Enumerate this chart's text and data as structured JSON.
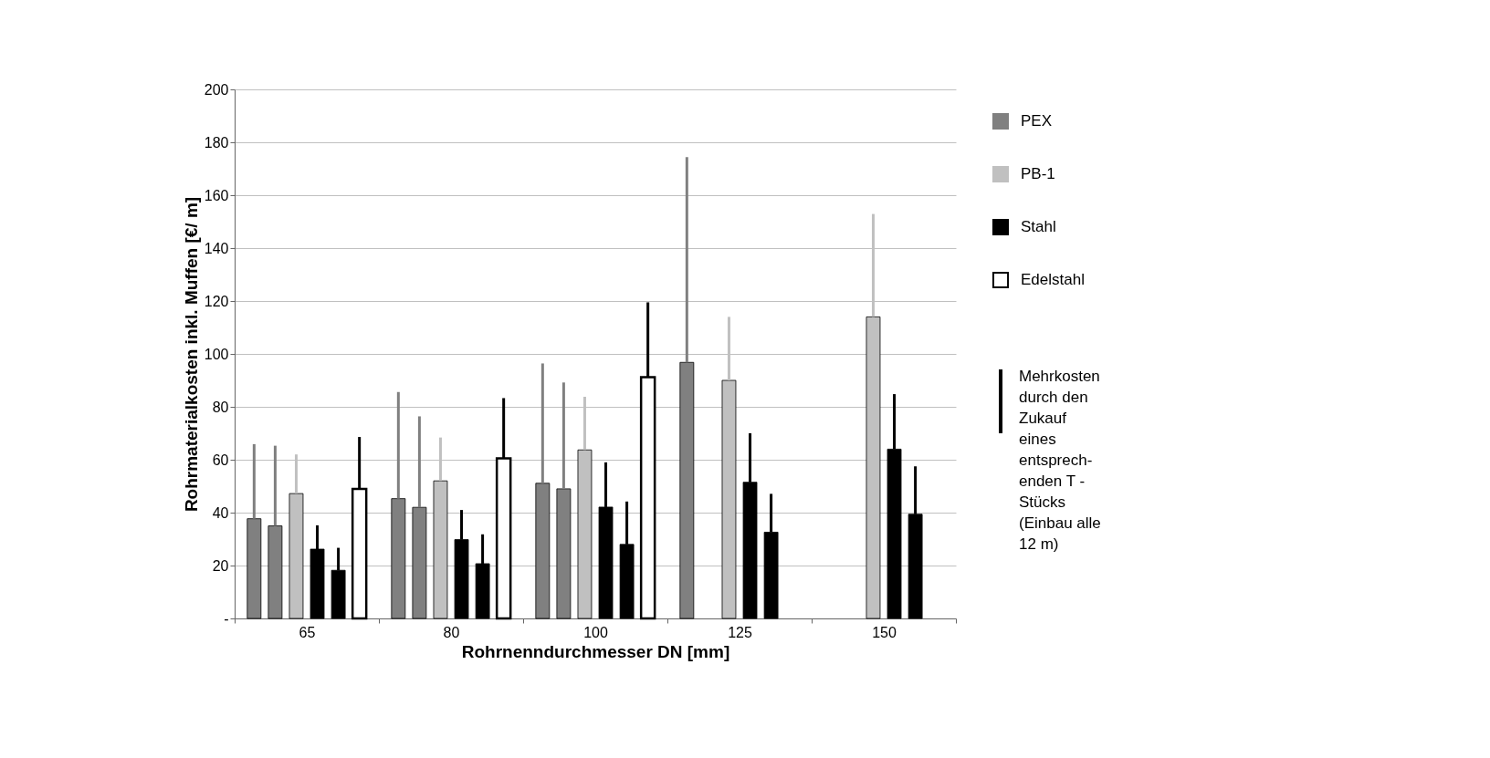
{
  "chart_data": {
    "type": "bar",
    "xlabel": "Rohrnenndurchmesser  DN [mm]",
    "ylabel": "Rohrmaterialkosten inkl. Muffen [€/ m]",
    "categories": [
      "65",
      "80",
      "100",
      "125",
      "150"
    ],
    "series": [
      {
        "name": "PEX",
        "color": "#808080",
        "values": [
          37.7,
          45.3,
          51.1,
          96.8,
          null
        ],
        "errors": [
          [
            37.7,
            65.9
          ],
          [
            45.3,
            85.6
          ],
          [
            51.1,
            96.4
          ],
          [
            96.8,
            174.4
          ],
          null
        ]
      },
      {
        "color": "#808080",
        "values": [
          35,
          42,
          49,
          null,
          null
        ],
        "errors": [
          [
            35,
            65.3
          ],
          [
            42,
            76.4
          ],
          [
            49,
            89.2
          ],
          null,
          null
        ]
      },
      {
        "name": "PB-1",
        "color": "#c0c0c0",
        "values": [
          47.2,
          52,
          63.7,
          90,
          114
        ],
        "errors": [
          [
            47.2,
            62
          ],
          [
            52,
            68.4
          ],
          [
            63.7,
            83.8
          ],
          [
            90,
            114
          ],
          [
            114,
            152.9
          ]
        ]
      },
      {
        "name": "Stahl",
        "color": "#000000",
        "values": [
          26.2,
          29.8,
          42.1,
          51.5,
          64
        ],
        "errors": [
          [
            26.2,
            35.2
          ],
          [
            29.8,
            41
          ],
          [
            42.1,
            59
          ],
          [
            51.5,
            70
          ],
          [
            64,
            84.8
          ]
        ]
      },
      {
        "color": "#000000",
        "values": [
          18.2,
          20.7,
          28,
          32.6,
          39.4
        ],
        "errors": [
          [
            18.2,
            26.7
          ],
          [
            20.7,
            31.8
          ],
          [
            28,
            44.2
          ],
          [
            32.6,
            47.1
          ],
          [
            39.4,
            57.5
          ]
        ]
      },
      {
        "name": "Edelstahl",
        "color": "#ffffff",
        "values": [
          49,
          60.5,
          91.2,
          null,
          null
        ],
        "errors": [
          [
            49,
            68.6
          ],
          [
            60.5,
            83.3
          ],
          [
            91.2,
            119.5
          ],
          null,
          null
        ]
      }
    ],
    "ylim": [
      0,
      200
    ],
    "yticks": [
      {
        "value": 0,
        "label": "-"
      },
      20,
      40,
      60,
      80,
      100,
      120,
      140,
      160,
      180,
      200
    ],
    "grid": "y",
    "legend": "right",
    "annotations": [
      "Mehrkosten\ndurch den\nZukauf\neines\nentsprech-\nenden T -\nStücks\n(Einbau alle\n12 m)"
    ]
  }
}
